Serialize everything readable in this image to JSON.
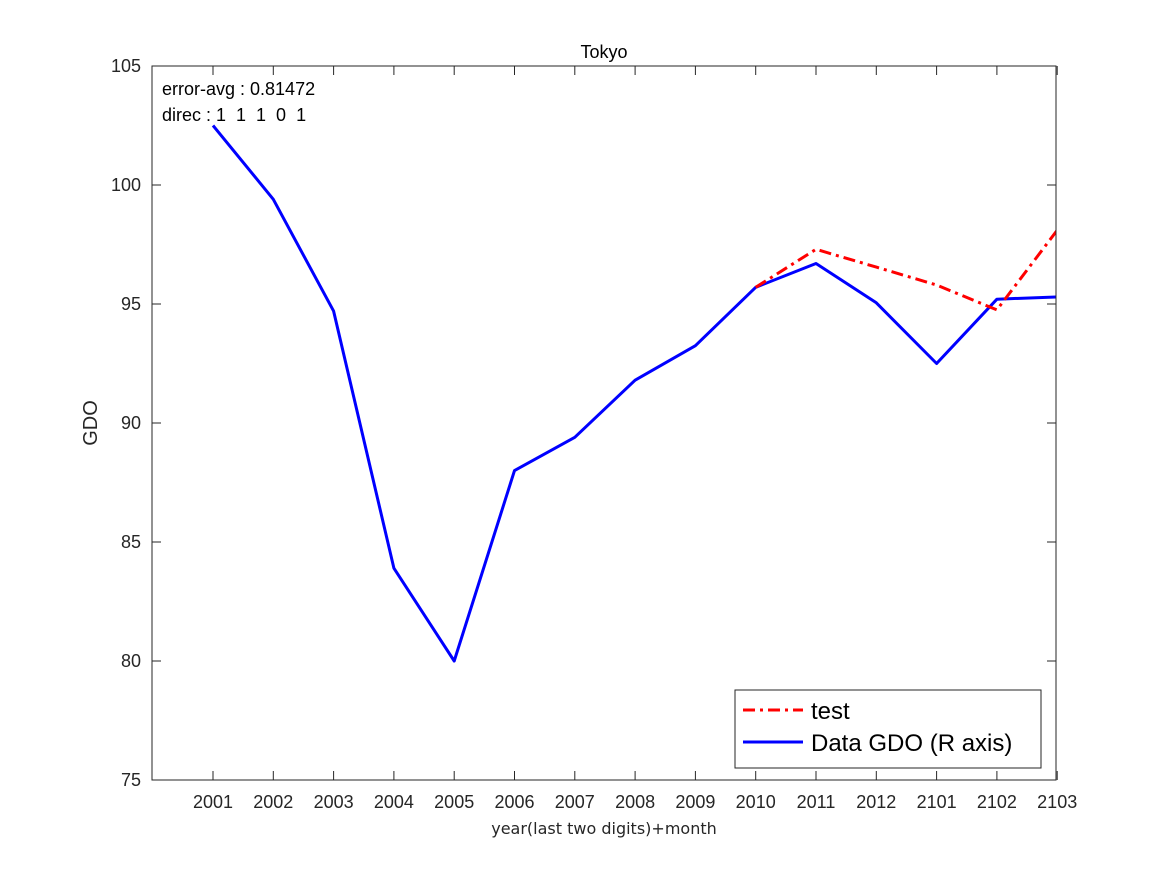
{
  "chart_data": {
    "type": "line",
    "title": "Tokyo",
    "xlabel": "year(last two digits)+month",
    "ylabel": "GDO",
    "ylim": [
      75,
      105
    ],
    "yticks": [
      75,
      80,
      85,
      90,
      95,
      100,
      105
    ],
    "categories": [
      "2001",
      "2002",
      "2003",
      "2004",
      "2005",
      "2006",
      "2007",
      "2008",
      "2009",
      "2010",
      "2011",
      "2012",
      "2101",
      "2102",
      "2103"
    ],
    "series": [
      {
        "name": "test",
        "color": "#ff0000",
        "style": "dash-dot",
        "values": [
          null,
          null,
          null,
          null,
          null,
          null,
          null,
          null,
          null,
          95.7,
          97.3,
          96.55,
          95.8,
          94.75,
          98.1
        ]
      },
      {
        "name": "Data GDO (R axis)",
        "color": "#0000ff",
        "style": "solid",
        "values": [
          102.5,
          99.4,
          94.7,
          83.9,
          80.0,
          88.0,
          89.4,
          91.8,
          93.25,
          95.7,
          96.7,
          95.05,
          92.5,
          95.2,
          95.3
        ]
      }
    ],
    "annotations": [
      "error-avg : 0.81472",
      "direc : 1  1  1  0  1"
    ],
    "legend_position": "bottom-right",
    "grid": false
  }
}
